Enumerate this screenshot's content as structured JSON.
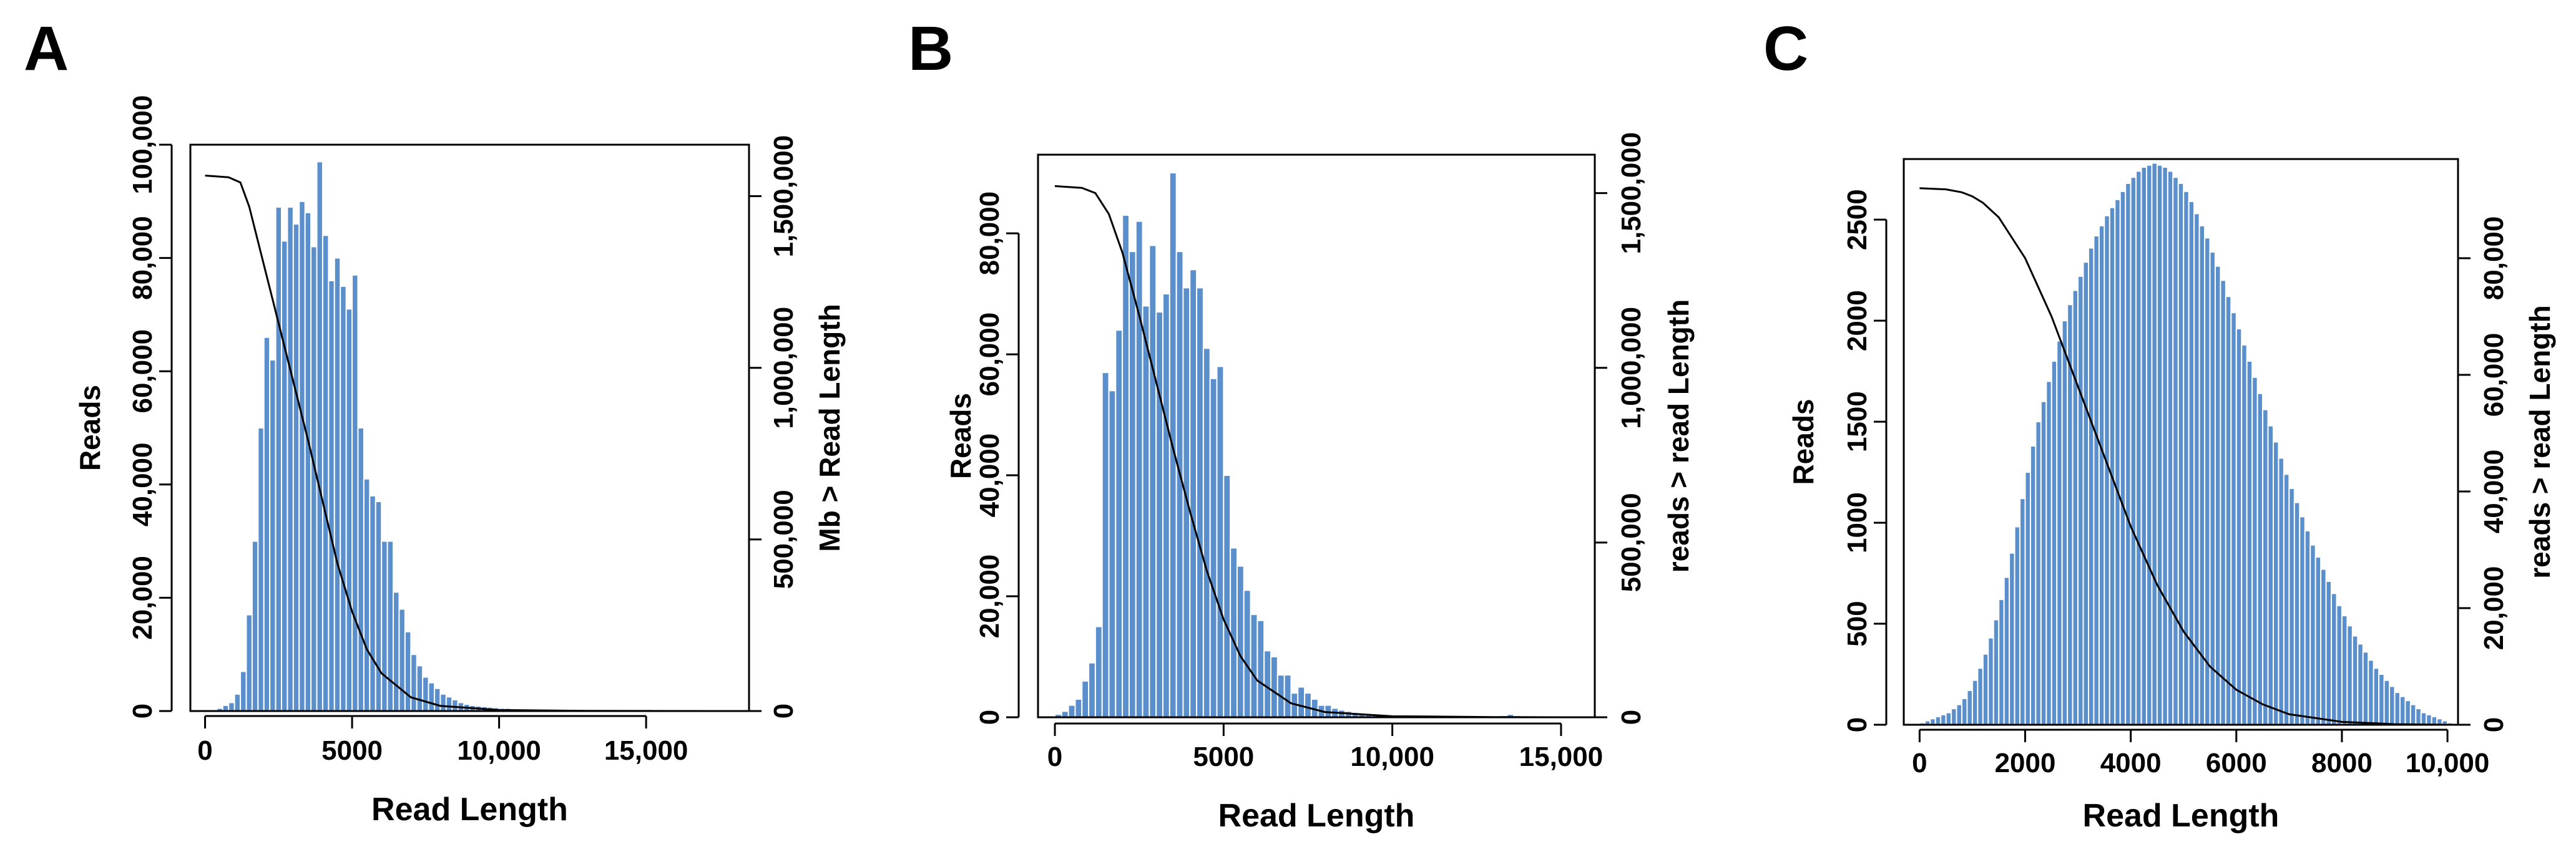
{
  "colors": {
    "bar": "#5b8fcb",
    "line": "#000000"
  },
  "chart_data": [
    {
      "panel": "A",
      "type": "bar",
      "xlabel": "Read Length",
      "ylabel": "Reads",
      "y2label": "Mb > Read Length",
      "xlim": [
        -500,
        18500
      ],
      "ylim": [
        0,
        100000
      ],
      "y2lim": [
        0,
        1650000
      ],
      "x_ticks": [
        0,
        5000,
        10000,
        15000
      ],
      "x_tick_labels": [
        "0",
        "5000",
        "10,000",
        "15,000"
      ],
      "y_ticks": [
        0,
        20000,
        40000,
        60000,
        80000,
        100000
      ],
      "y_tick_labels": [
        "0",
        "20,000",
        "40,000",
        "60,000",
        "80,000",
        "100,000"
      ],
      "y2_ticks": [
        0,
        500000,
        1000000,
        1500000
      ],
      "y2_tick_labels": [
        "0",
        "500,000",
        "1,000,000",
        "1,500,000"
      ],
      "bin_start": 0,
      "bin_width": 200,
      "values": [
        0,
        0,
        500,
        1000,
        1500,
        3000,
        7000,
        17000,
        30000,
        50000,
        66000,
        62000,
        89000,
        83000,
        89000,
        86000,
        90000,
        88000,
        82000,
        97000,
        84000,
        76000,
        80000,
        75000,
        71000,
        77000,
        50000,
        41000,
        38000,
        37000,
        30000,
        30000,
        21000,
        18000,
        14000,
        10000,
        8000,
        6000,
        5000,
        4000,
        3000,
        2500,
        2000,
        1500,
        1200,
        1000,
        900,
        800,
        700,
        600,
        500,
        500,
        400,
        400,
        400,
        300,
        300,
        300,
        300,
        300,
        300,
        300,
        300,
        300,
        300,
        300,
        300,
        300,
        300,
        300,
        300,
        300,
        300,
        300,
        300,
        300
      ],
      "line": {
        "x": [
          0,
          800,
          1200,
          1500,
          2000,
          2500,
          3000,
          3500,
          4000,
          4500,
          5000,
          5500,
          6000,
          7000,
          8000,
          10000,
          13000,
          18000
        ],
        "y2": [
          1560000,
          1555000,
          1540000,
          1470000,
          1300000,
          1130000,
          960000,
          790000,
          610000,
          430000,
          290000,
          180000,
          110000,
          40000,
          15000,
          3000,
          500,
          0
        ]
      }
    },
    {
      "panel": "B",
      "type": "bar",
      "xlabel": "Read Length",
      "ylabel": "Reads",
      "y2label": "reads > read Length",
      "xlim": [
        -500,
        16000
      ],
      "ylim": [
        0,
        93000
      ],
      "y2lim": [
        0,
        1610000
      ],
      "x_ticks": [
        0,
        5000,
        10000,
        15000
      ],
      "x_tick_labels": [
        "0",
        "5000",
        "10,000",
        "15,000"
      ],
      "y_ticks": [
        0,
        20000,
        40000,
        60000,
        80000
      ],
      "y_tick_labels": [
        "0",
        "20,000",
        "40,000",
        "60,000",
        "80,000"
      ],
      "y2_ticks": [
        0,
        500000,
        1000000,
        1500000
      ],
      "y2_tick_labels": [
        "0",
        "500,000",
        "1,000,000",
        "1,500,000"
      ],
      "bin_start": 0,
      "bin_width": 200,
      "values": [
        500,
        1000,
        2000,
        3000,
        6000,
        9000,
        15000,
        57000,
        54000,
        64000,
        83000,
        77000,
        82000,
        68000,
        78000,
        67000,
        70000,
        90000,
        77000,
        71000,
        74000,
        71000,
        61000,
        56000,
        58000,
        40000,
        28000,
        25000,
        21000,
        17000,
        16000,
        11000,
        10000,
        7000,
        7000,
        4000,
        5000,
        4000,
        3000,
        2000,
        2000,
        1500,
        1200,
        1000,
        800,
        600,
        500,
        400,
        300,
        300,
        300,
        300,
        300,
        300,
        300,
        300,
        300,
        0,
        0,
        0,
        0,
        0,
        0,
        0,
        0,
        0,
        300,
        500,
        300,
        0,
        0,
        0,
        0,
        0,
        0,
        0
      ],
      "line": {
        "x": [
          0,
          800,
          1200,
          1600,
          2000,
          2500,
          3000,
          3500,
          4000,
          4500,
          5000,
          5500,
          6000,
          7000,
          8000,
          10000,
          13000,
          15000
        ],
        "y2": [
          1520000,
          1515000,
          1500000,
          1440000,
          1330000,
          1150000,
          960000,
          770000,
          590000,
          420000,
          280000,
          175000,
          105000,
          40000,
          15000,
          3000,
          500,
          0
        ]
      }
    },
    {
      "panel": "C",
      "type": "bar",
      "xlabel": "Read Length",
      "ylabel": "Reads",
      "y2label": "reads > read Length",
      "xlim": [
        -300,
        10200
      ],
      "ylim": [
        0,
        2800
      ],
      "y2lim": [
        0,
        97000
      ],
      "x_ticks": [
        0,
        2000,
        4000,
        6000,
        8000,
        10000
      ],
      "x_tick_labels": [
        "0",
        "2000",
        "4000",
        "6000",
        "8000",
        "10,000"
      ],
      "y_ticks": [
        0,
        500,
        1000,
        1500,
        2000,
        2500
      ],
      "y_tick_labels": [
        "0",
        "500",
        "1000",
        "1500",
        "2000",
        "2500"
      ],
      "y2_ticks": [
        0,
        20000,
        40000,
        60000,
        80000
      ],
      "y2_tick_labels": [
        "0",
        "20,000",
        "40,000",
        "60,000",
        "80,000"
      ],
      "bin_start": 0,
      "bin_width": 100,
      "values": [
        10,
        20,
        30,
        40,
        50,
        60,
        80,
        100,
        130,
        170,
        220,
        280,
        350,
        430,
        520,
        620,
        730,
        850,
        980,
        1120,
        1250,
        1380,
        1500,
        1600,
        1700,
        1800,
        1900,
        2000,
        2080,
        2150,
        2220,
        2290,
        2360,
        2420,
        2470,
        2520,
        2560,
        2600,
        2640,
        2680,
        2710,
        2740,
        2760,
        2770,
        2780,
        2770,
        2760,
        2740,
        2710,
        2680,
        2640,
        2590,
        2530,
        2470,
        2410,
        2340,
        2270,
        2200,
        2120,
        2040,
        1960,
        1880,
        1800,
        1720,
        1640,
        1560,
        1480,
        1400,
        1320,
        1240,
        1170,
        1100,
        1030,
        960,
        890,
        830,
        770,
        710,
        650,
        590,
        540,
        490,
        440,
        400,
        360,
        320,
        280,
        250,
        220,
        190,
        160,
        140,
        120,
        100,
        80,
        60,
        50,
        40,
        30,
        20,
        10
      ],
      "line": {
        "x": [
          0,
          500,
          800,
          1000,
          1200,
          1500,
          2000,
          2500,
          3000,
          3500,
          4000,
          4500,
          5000,
          5500,
          6000,
          6500,
          7000,
          8000,
          9000,
          10000
        ],
        "y2": [
          92000,
          91800,
          91300,
          90600,
          89500,
          87000,
          80000,
          70000,
          58000,
          46000,
          34000,
          24000,
          16000,
          10000,
          6000,
          3500,
          1800,
          500,
          100,
          0
        ]
      }
    }
  ]
}
